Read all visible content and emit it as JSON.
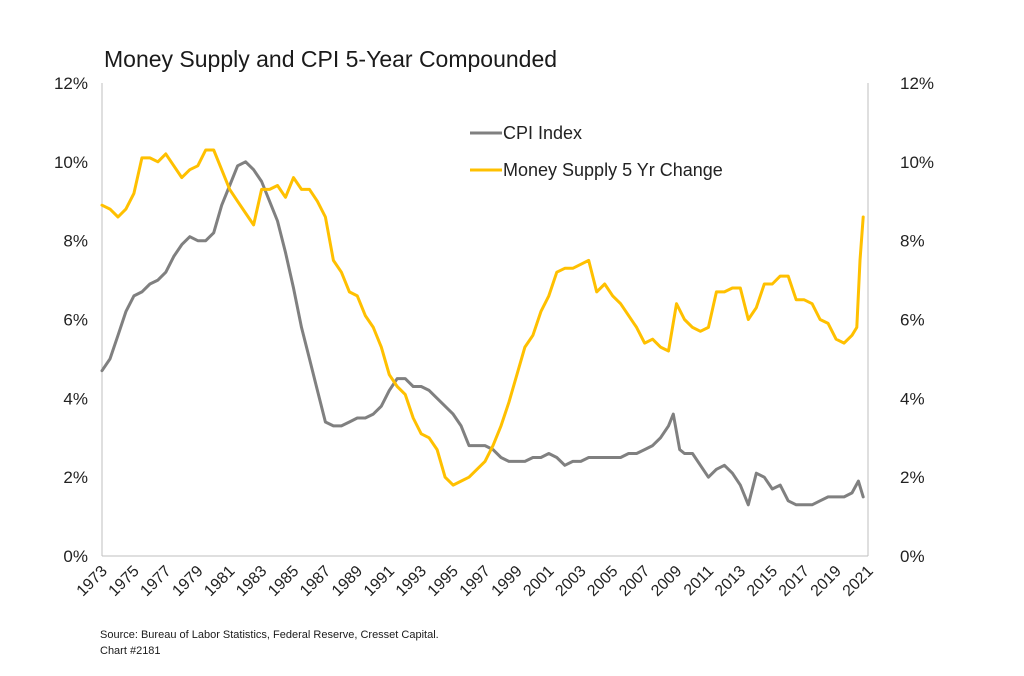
{
  "chart_data": {
    "type": "line",
    "title": "Money Supply and CPI 5-Year Compounded",
    "x_ticks": [
      "1973",
      "1975",
      "1977",
      "1979",
      "1981",
      "1983",
      "1985",
      "1987",
      "1989",
      "1991",
      "1993",
      "1995",
      "1997",
      "1999",
      "2001",
      "2003",
      "2005",
      "2007",
      "2009",
      "2011",
      "2013",
      "2015",
      "2017",
      "2019",
      "2021"
    ],
    "xlim": [
      1973,
      2021
    ],
    "y_left": {
      "ticks": [
        "0%",
        "2%",
        "4%",
        "6%",
        "8%",
        "10%",
        "12%"
      ],
      "lim": [
        0,
        12
      ]
    },
    "y_right": {
      "ticks": [
        "0%",
        "2%",
        "4%",
        "6%",
        "8%",
        "10%",
        "12%"
      ],
      "lim": [
        0,
        12
      ]
    },
    "grid": false,
    "legend_position": "top-center",
    "series": [
      {
        "name": "CPI Index",
        "color": "#808080",
        "points": [
          [
            1973.0,
            4.7
          ],
          [
            1973.5,
            5.0
          ],
          [
            1974.0,
            5.6
          ],
          [
            1974.5,
            6.2
          ],
          [
            1975.0,
            6.6
          ],
          [
            1975.5,
            6.7
          ],
          [
            1976.0,
            6.9
          ],
          [
            1976.5,
            7.0
          ],
          [
            1977.0,
            7.2
          ],
          [
            1977.5,
            7.6
          ],
          [
            1978.0,
            7.9
          ],
          [
            1978.5,
            8.1
          ],
          [
            1979.0,
            8.0
          ],
          [
            1979.5,
            8.0
          ],
          [
            1980.0,
            8.2
          ],
          [
            1980.5,
            8.9
          ],
          [
            1981.0,
            9.4
          ],
          [
            1981.5,
            9.9
          ],
          [
            1982.0,
            10.0
          ],
          [
            1982.5,
            9.8
          ],
          [
            1983.0,
            9.5
          ],
          [
            1983.5,
            9.0
          ],
          [
            1984.0,
            8.5
          ],
          [
            1984.5,
            7.7
          ],
          [
            1985.0,
            6.8
          ],
          [
            1985.5,
            5.8
          ],
          [
            1986.0,
            5.0
          ],
          [
            1986.5,
            4.2
          ],
          [
            1987.0,
            3.4
          ],
          [
            1987.5,
            3.3
          ],
          [
            1988.0,
            3.3
          ],
          [
            1988.5,
            3.4
          ],
          [
            1989.0,
            3.5
          ],
          [
            1989.5,
            3.5
          ],
          [
            1990.0,
            3.6
          ],
          [
            1990.5,
            3.8
          ],
          [
            1991.0,
            4.2
          ],
          [
            1991.5,
            4.5
          ],
          [
            1992.0,
            4.5
          ],
          [
            1992.5,
            4.3
          ],
          [
            1993.0,
            4.3
          ],
          [
            1993.5,
            4.2
          ],
          [
            1994.0,
            4.0
          ],
          [
            1994.5,
            3.8
          ],
          [
            1995.0,
            3.6
          ],
          [
            1995.5,
            3.3
          ],
          [
            1996.0,
            2.8
          ],
          [
            1996.5,
            2.8
          ],
          [
            1997.0,
            2.8
          ],
          [
            1997.5,
            2.7
          ],
          [
            1998.0,
            2.5
          ],
          [
            1998.5,
            2.4
          ],
          [
            1999.0,
            2.4
          ],
          [
            1999.5,
            2.4
          ],
          [
            2000.0,
            2.5
          ],
          [
            2000.5,
            2.5
          ],
          [
            2001.0,
            2.6
          ],
          [
            2001.5,
            2.5
          ],
          [
            2002.0,
            2.3
          ],
          [
            2002.5,
            2.4
          ],
          [
            2003.0,
            2.4
          ],
          [
            2003.5,
            2.5
          ],
          [
            2004.0,
            2.5
          ],
          [
            2004.5,
            2.5
          ],
          [
            2005.0,
            2.5
          ],
          [
            2005.5,
            2.5
          ],
          [
            2006.0,
            2.6
          ],
          [
            2006.5,
            2.6
          ],
          [
            2007.0,
            2.7
          ],
          [
            2007.5,
            2.8
          ],
          [
            2008.0,
            3.0
          ],
          [
            2008.5,
            3.3
          ],
          [
            2008.8,
            3.6
          ],
          [
            2009.2,
            2.7
          ],
          [
            2009.5,
            2.6
          ],
          [
            2010.0,
            2.6
          ],
          [
            2010.5,
            2.3
          ],
          [
            2011.0,
            2.0
          ],
          [
            2011.5,
            2.2
          ],
          [
            2012.0,
            2.3
          ],
          [
            2012.5,
            2.1
          ],
          [
            2013.0,
            1.8
          ],
          [
            2013.5,
            1.3
          ],
          [
            2014.0,
            2.1
          ],
          [
            2014.5,
            2.0
          ],
          [
            2015.0,
            1.7
          ],
          [
            2015.5,
            1.8
          ],
          [
            2016.0,
            1.4
          ],
          [
            2016.5,
            1.3
          ],
          [
            2017.0,
            1.3
          ],
          [
            2017.5,
            1.3
          ],
          [
            2018.0,
            1.4
          ],
          [
            2018.5,
            1.5
          ],
          [
            2019.0,
            1.5
          ],
          [
            2019.5,
            1.5
          ],
          [
            2020.0,
            1.6
          ],
          [
            2020.4,
            1.9
          ],
          [
            2020.7,
            1.5
          ]
        ]
      },
      {
        "name": "Money Supply 5 Yr Change",
        "color": "#FFC000",
        "points": [
          [
            1973.0,
            8.9
          ],
          [
            1973.5,
            8.8
          ],
          [
            1974.0,
            8.6
          ],
          [
            1974.5,
            8.8
          ],
          [
            1975.0,
            9.2
          ],
          [
            1975.5,
            10.1
          ],
          [
            1976.0,
            10.1
          ],
          [
            1976.5,
            10.0
          ],
          [
            1977.0,
            10.2
          ],
          [
            1977.5,
            9.9
          ],
          [
            1978.0,
            9.6
          ],
          [
            1978.5,
            9.8
          ],
          [
            1979.0,
            9.9
          ],
          [
            1979.5,
            10.3
          ],
          [
            1980.0,
            10.3
          ],
          [
            1980.5,
            9.8
          ],
          [
            1981.0,
            9.3
          ],
          [
            1981.5,
            9.0
          ],
          [
            1982.0,
            8.7
          ],
          [
            1982.5,
            8.4
          ],
          [
            1983.0,
            9.3
          ],
          [
            1983.5,
            9.3
          ],
          [
            1984.0,
            9.4
          ],
          [
            1984.5,
            9.1
          ],
          [
            1985.0,
            9.6
          ],
          [
            1985.5,
            9.3
          ],
          [
            1986.0,
            9.3
          ],
          [
            1986.5,
            9.0
          ],
          [
            1987.0,
            8.6
          ],
          [
            1987.5,
            7.5
          ],
          [
            1988.0,
            7.2
          ],
          [
            1988.5,
            6.7
          ],
          [
            1989.0,
            6.6
          ],
          [
            1989.5,
            6.1
          ],
          [
            1990.0,
            5.8
          ],
          [
            1990.5,
            5.3
          ],
          [
            1991.0,
            4.6
          ],
          [
            1991.5,
            4.3
          ],
          [
            1992.0,
            4.1
          ],
          [
            1992.5,
            3.5
          ],
          [
            1993.0,
            3.1
          ],
          [
            1993.5,
            3.0
          ],
          [
            1994.0,
            2.7
          ],
          [
            1994.5,
            2.0
          ],
          [
            1995.0,
            1.8
          ],
          [
            1995.5,
            1.9
          ],
          [
            1996.0,
            2.0
          ],
          [
            1996.5,
            2.2
          ],
          [
            1997.0,
            2.4
          ],
          [
            1997.5,
            2.8
          ],
          [
            1998.0,
            3.3
          ],
          [
            1998.5,
            3.9
          ],
          [
            1999.0,
            4.6
          ],
          [
            1999.5,
            5.3
          ],
          [
            2000.0,
            5.6
          ],
          [
            2000.5,
            6.2
          ],
          [
            2001.0,
            6.6
          ],
          [
            2001.5,
            7.2
          ],
          [
            2002.0,
            7.3
          ],
          [
            2002.5,
            7.3
          ],
          [
            2003.0,
            7.4
          ],
          [
            2003.5,
            7.5
          ],
          [
            2004.0,
            6.7
          ],
          [
            2004.5,
            6.9
          ],
          [
            2005.0,
            6.6
          ],
          [
            2005.5,
            6.4
          ],
          [
            2006.0,
            6.1
          ],
          [
            2006.5,
            5.8
          ],
          [
            2007.0,
            5.4
          ],
          [
            2007.5,
            5.5
          ],
          [
            2008.0,
            5.3
          ],
          [
            2008.5,
            5.2
          ],
          [
            2009.0,
            6.4
          ],
          [
            2009.5,
            6.0
          ],
          [
            2010.0,
            5.8
          ],
          [
            2010.5,
            5.7
          ],
          [
            2011.0,
            5.8
          ],
          [
            2011.5,
            6.7
          ],
          [
            2012.0,
            6.7
          ],
          [
            2012.5,
            6.8
          ],
          [
            2013.0,
            6.8
          ],
          [
            2013.5,
            6.0
          ],
          [
            2014.0,
            6.3
          ],
          [
            2014.5,
            6.9
          ],
          [
            2015.0,
            6.9
          ],
          [
            2015.5,
            7.1
          ],
          [
            2016.0,
            7.1
          ],
          [
            2016.5,
            6.5
          ],
          [
            2017.0,
            6.5
          ],
          [
            2017.5,
            6.4
          ],
          [
            2018.0,
            6.0
          ],
          [
            2018.5,
            5.9
          ],
          [
            2019.0,
            5.5
          ],
          [
            2019.5,
            5.4
          ],
          [
            2020.0,
            5.6
          ],
          [
            2020.3,
            5.8
          ],
          [
            2020.5,
            7.5
          ],
          [
            2020.7,
            8.6
          ]
        ]
      }
    ],
    "source_line1": "Source:  Bureau of Labor Statistics, Federal Reserve, Cresset Capital.",
    "source_line2": "Chart #2181"
  }
}
